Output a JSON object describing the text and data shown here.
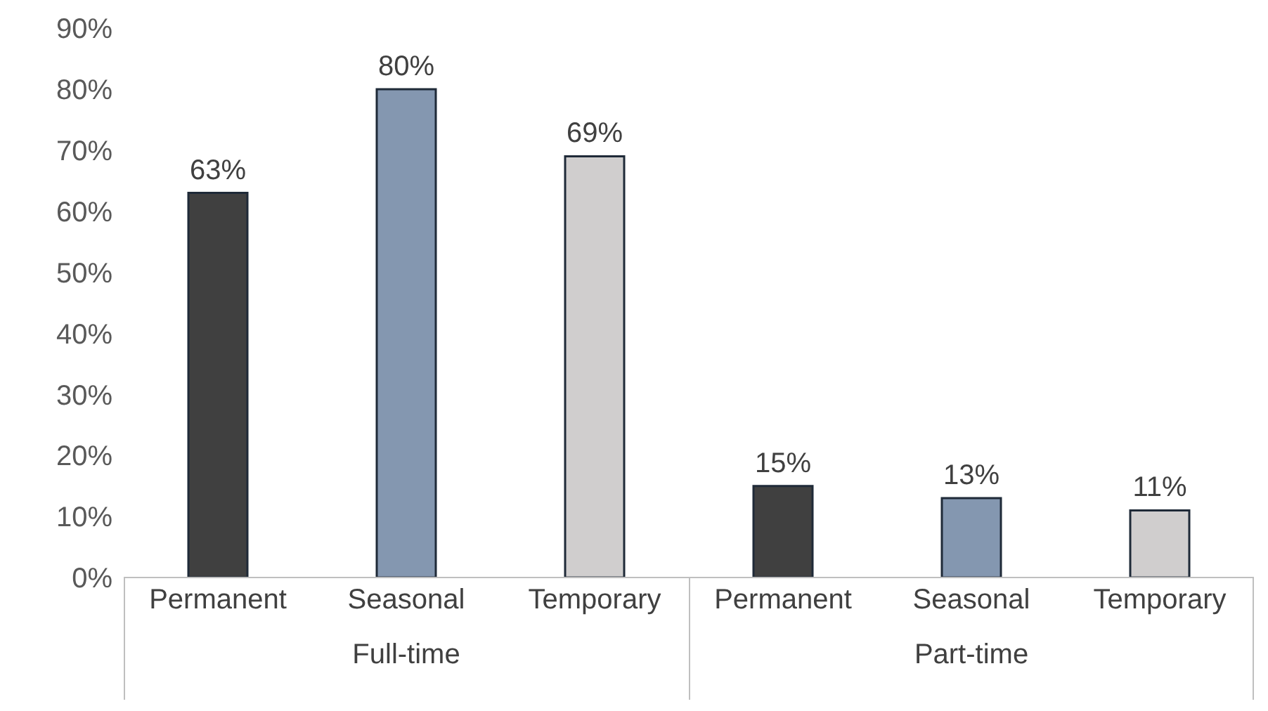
{
  "chart_data": {
    "type": "bar",
    "categories": [
      "Permanent",
      "Seasonal",
      "Temporary",
      "Permanent",
      "Seasonal",
      "Temporary"
    ],
    "values": [
      63,
      80,
      69,
      15,
      13,
      11
    ],
    "colors": [
      "#404040",
      "#8497b0",
      "#d0cece",
      "#404040",
      "#8497b0",
      "#d0cece"
    ],
    "value_labels": [
      "63%",
      "80%",
      "69%",
      "15%",
      "13%",
      "11%"
    ],
    "annotations": [
      "Full-time",
      "Part-time"
    ],
    "ylim": [
      0,
      90
    ],
    "yticks": [
      {
        "value": 0,
        "label": "0%"
      },
      {
        "value": 10,
        "label": "10%"
      },
      {
        "value": 20,
        "label": "20%"
      },
      {
        "value": 30,
        "label": "30%"
      },
      {
        "value": 40,
        "label": "40%"
      },
      {
        "value": 50,
        "label": "50%"
      },
      {
        "value": 60,
        "label": "60%"
      },
      {
        "value": 70,
        "label": "70%"
      },
      {
        "value": 80,
        "label": "80%"
      },
      {
        "value": 90,
        "label": "90%"
      }
    ],
    "grid": false,
    "legend": false
  }
}
